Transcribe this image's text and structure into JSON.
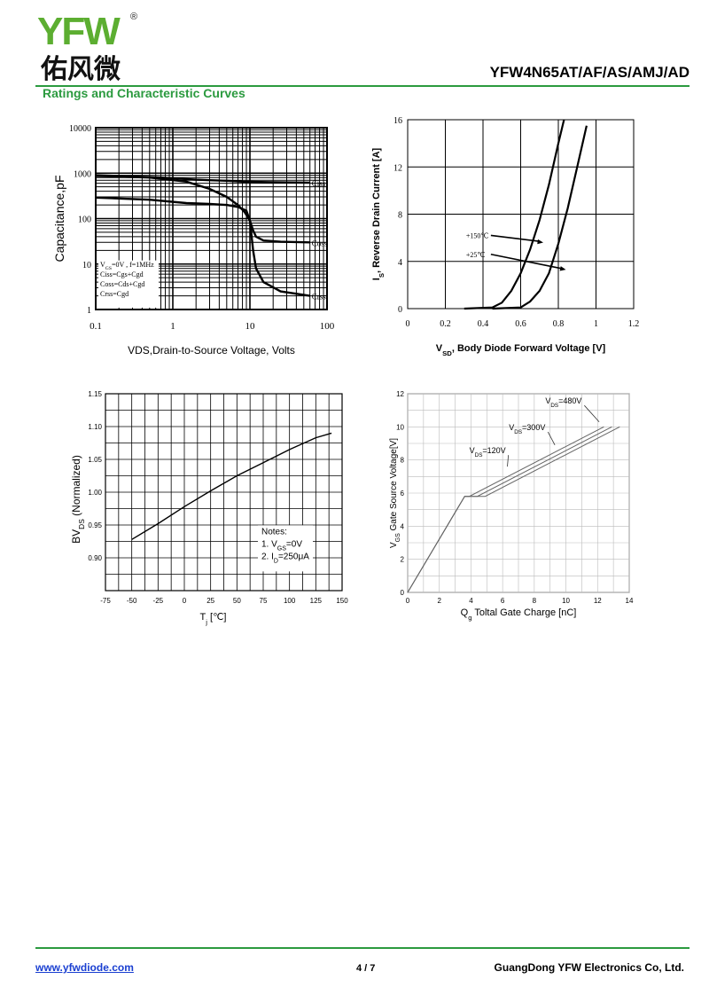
{
  "header": {
    "logo_text": "YFW",
    "logo_chinese": "佑风微",
    "logo_mark": "®",
    "part_number": "YFW4N65AT/AF/AS/AMJ/AD",
    "section_title": "Ratings and Characteristic Curves"
  },
  "footer": {
    "website": "www.yfwdiode.com",
    "page": "4 / 7",
    "company": "GuangDong YFW Electronics Co, Ltd."
  },
  "chart_data": [
    {
      "type": "line",
      "xlabel": "VDS,Drain-to-Source Voltage, Volts",
      "ylabel": "Capacitance,pF",
      "x_scale": "log",
      "y_scale": "log",
      "xlim": [
        0.1,
        100
      ],
      "ylim": [
        1,
        10000
      ],
      "x_ticks": [
        0.1,
        1,
        10,
        100
      ],
      "x_tick_labels": [
        "0.1",
        "1",
        "10",
        "100"
      ],
      "y_ticks": [
        1,
        10,
        100,
        1000,
        10000
      ],
      "y_tick_labels": [
        "1",
        "10",
        "100",
        "1000",
        "10000"
      ],
      "grid": true,
      "legend": [
        "VGS=0V , f=1MHz",
        "Ciss=Cgs+Cgd",
        "Coss=Cds+Cgd",
        "Crss=Cgd"
      ],
      "series": [
        {
          "name": "Ciss",
          "x": [
            0.1,
            0.3,
            0.7,
            1.2,
            2,
            3,
            5,
            8,
            20,
            60
          ],
          "y": [
            900,
            850,
            800,
            760,
            720,
            700,
            680,
            650,
            630,
            620
          ]
        },
        {
          "name": "Coss",
          "x": [
            0.1,
            0.5,
            1.5,
            3,
            5,
            7,
            8.5,
            10,
            11,
            12,
            15,
            25,
            60
          ],
          "y": [
            870,
            800,
            650,
            450,
            300,
            200,
            140,
            90,
            55,
            40,
            33,
            31,
            30
          ]
        },
        {
          "name": "Crss",
          "x": [
            0.1,
            0.5,
            1.5,
            3,
            5,
            7,
            9,
            10,
            11,
            12,
            15,
            25,
            60
          ],
          "y": [
            290,
            260,
            220,
            210,
            200,
            180,
            150,
            90,
            20,
            8,
            4,
            2.5,
            2
          ]
        }
      ]
    },
    {
      "type": "line",
      "xlabel": "VSD, Body Diode Forward Voltage [V]",
      "ylabel": "IS, Reverse Drain Current [A]",
      "xlim": [
        0,
        1.2
      ],
      "ylim": [
        0,
        16
      ],
      "x_ticks": [
        0,
        0.2,
        0.4,
        0.6,
        0.8,
        1,
        1.2
      ],
      "x_tick_labels": [
        "0",
        "0.2",
        "0.4",
        "0.6",
        "0.8",
        "1",
        "1.2"
      ],
      "y_ticks": [
        0,
        4,
        8,
        12,
        16
      ],
      "y_tick_labels": [
        "0",
        "4",
        "8",
        "12",
        "16"
      ],
      "grid": true,
      "series": [
        {
          "name": "+150℃",
          "x": [
            0.3,
            0.45,
            0.5,
            0.55,
            0.6,
            0.65,
            0.7,
            0.75,
            0.8,
            0.83
          ],
          "y": [
            0,
            0.1,
            0.5,
            1.5,
            3,
            5,
            7.5,
            10.5,
            14,
            16
          ]
        },
        {
          "name": "+25℃",
          "x": [
            0.45,
            0.6,
            0.65,
            0.7,
            0.75,
            0.8,
            0.85,
            0.9,
            0.95
          ],
          "y": [
            0,
            0.1,
            0.6,
            1.5,
            3,
            5.5,
            8.5,
            12,
            15.5
          ]
        }
      ]
    },
    {
      "type": "line",
      "xlabel": "Tj [℃]",
      "ylabel": "BVDS (Normalized)",
      "xlim": [
        -75,
        150
      ],
      "ylim": [
        0.85,
        1.15
      ],
      "x_ticks": [
        -75,
        -50,
        -25,
        0,
        25,
        50,
        75,
        100,
        125,
        150
      ],
      "x_tick_labels": [
        "-75",
        "-50",
        "-25",
        "0",
        "25",
        "50",
        "75",
        "100",
        "125",
        "150"
      ],
      "y_ticks": [
        0.9,
        0.95,
        1.0,
        1.05,
        1.1,
        1.15
      ],
      "y_tick_labels": [
        "0.90",
        "0.95",
        "1.00",
        "1.05",
        "1.10",
        "1.15"
      ],
      "grid": true,
      "notes": [
        "Notes:",
        "1. VGS=0V",
        "2. ID=250μA"
      ],
      "series": [
        {
          "x": [
            -50,
            -25,
            0,
            25,
            50,
            75,
            100,
            125,
            140
          ],
          "y": [
            0.928,
            0.952,
            0.978,
            1.002,
            1.025,
            1.045,
            1.065,
            1.083,
            1.09
          ]
        }
      ]
    },
    {
      "type": "line",
      "xlabel": "Qg Toltal Gate Charge [nC]",
      "ylabel": "VGS Gate Source Voltage[V]",
      "xlim": [
        0,
        14
      ],
      "ylim": [
        0,
        12
      ],
      "x_ticks": [
        0,
        2,
        4,
        6,
        8,
        10,
        12,
        14
      ],
      "x_tick_labels": [
        "0",
        "2",
        "4",
        "6",
        "8",
        "10",
        "12",
        "14"
      ],
      "y_ticks": [
        0,
        2,
        4,
        6,
        8,
        10,
        12
      ],
      "y_tick_labels": [
        "0",
        "2",
        "4",
        "6",
        "8",
        "10",
        "12"
      ],
      "grid": true,
      "series": [
        {
          "name": "VDS=120V",
          "x": [
            0,
            3.6,
            3.9,
            12.4
          ],
          "y": [
            0,
            5.8,
            5.8,
            10
          ]
        },
        {
          "name": "VDS=300V",
          "x": [
            0,
            3.6,
            4.4,
            12.9
          ],
          "y": [
            0,
            5.8,
            5.8,
            10
          ]
        },
        {
          "name": "VDS=480V",
          "x": [
            0,
            3.6,
            4.9,
            13.4
          ],
          "y": [
            0,
            5.8,
            5.8,
            10
          ]
        }
      ]
    }
  ]
}
